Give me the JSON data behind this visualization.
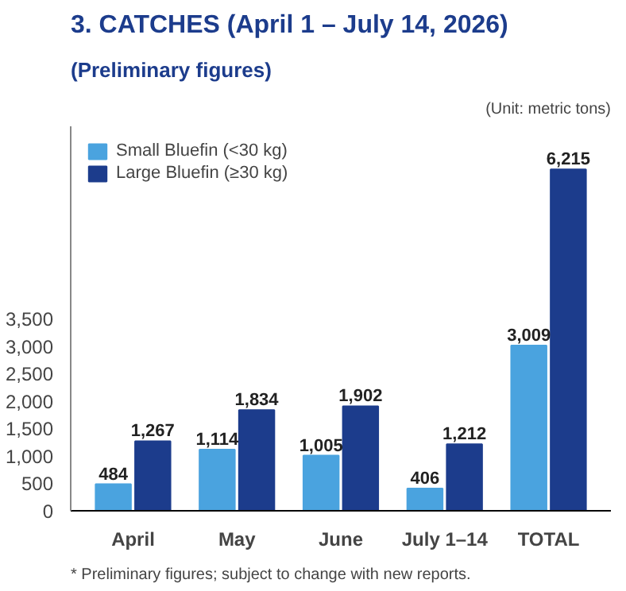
{
  "chart_data": {
    "type": "bar",
    "title": "3. CATCHES (April 1 – July 14, 2026)",
    "subtitle": "(Preliminary figures)",
    "annotations": [
      "(Unit: metric tons)",
      "* Preliminary figures; subject to change with new reports."
    ],
    "categories": [
      "April",
      "May",
      "June",
      "July 1–14",
      "TOTAL"
    ],
    "series": [
      {
        "name": "Small Bluefin (<30 kg)",
        "color": "#4aa3df",
        "values": [
          484,
          1114,
          1005,
          406,
          3009
        ],
        "value_labels": [
          "484",
          "1,114",
          "1,005",
          "406",
          "3,009"
        ]
      },
      {
        "name": "Large Bluefin (≥30 kg)",
        "color": "#1c3c8c",
        "values": [
          1267,
          1834,
          1902,
          1212,
          6215
        ],
        "value_labels": [
          "1,267",
          "1,834",
          "1,902",
          "1,212",
          "6,215"
        ]
      }
    ],
    "ylim": [
      0,
      7000
    ],
    "yticks": [
      0,
      500,
      {
        "value": 1000,
        "label": "1,000"
      },
      {
        "value": 1500,
        "label": "1,500"
      },
      {
        "value": 2000,
        "label": "2,000"
      },
      {
        "value": 2500,
        "label": "2,500"
      },
      {
        "value": 3000,
        "label": "3,000"
      },
      {
        "value": 3500,
        "label": "3,500"
      }
    ],
    "grid": false,
    "legend": "top left"
  }
}
